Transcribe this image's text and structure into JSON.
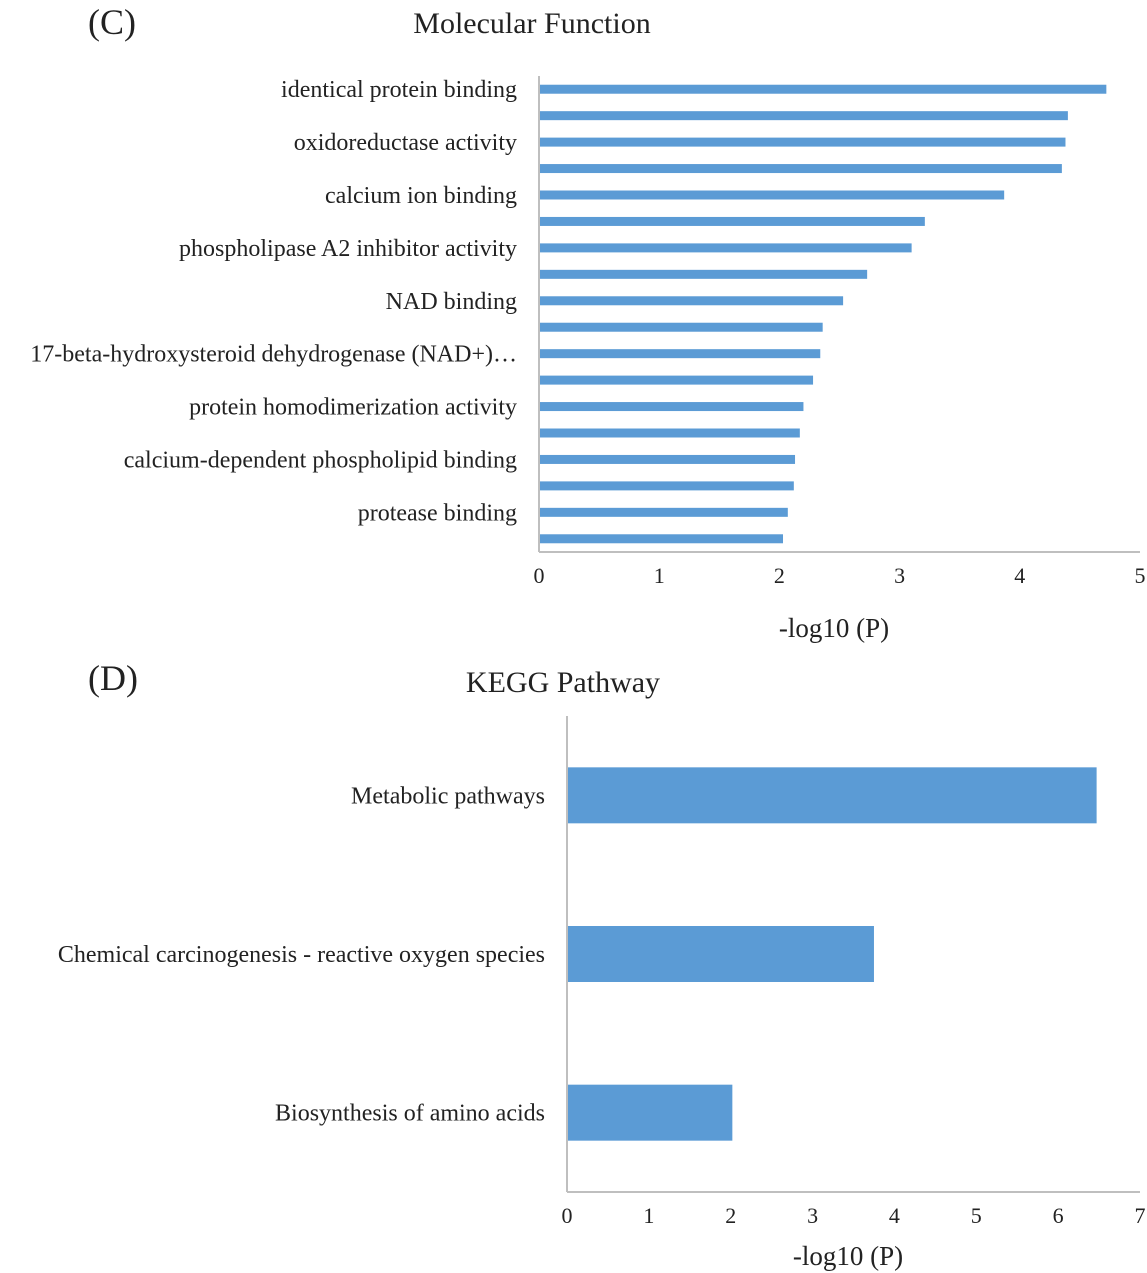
{
  "chart_data": [
    {
      "type": "bar",
      "orientation": "horizontal",
      "panel_label": "(C)",
      "title": "Molecular Function",
      "xlabel": "-log10 (P)",
      "ylabel": "",
      "xlim": [
        0,
        5
      ],
      "xticks": [
        "0",
        "1",
        "2",
        "3",
        "4",
        "5"
      ],
      "bar_color": "#5b9bd5",
      "categories": [
        "identical protein binding",
        "",
        "oxidoreductase activity",
        "",
        "calcium ion binding",
        "",
        "phospholipase A2 inhibitor activity",
        "",
        "NAD binding",
        "",
        "17-beta-hydroxysteroid dehydrogenase (NAD+)…",
        "",
        "protein homodimerization activity",
        "",
        "calcium-dependent phospholipid binding",
        "",
        "protease binding",
        ""
      ],
      "values": [
        4.72,
        4.4,
        4.38,
        4.35,
        3.87,
        3.21,
        3.1,
        2.73,
        2.53,
        2.36,
        2.34,
        2.28,
        2.2,
        2.17,
        2.13,
        2.12,
        2.07,
        2.03
      ]
    },
    {
      "type": "bar",
      "orientation": "horizontal",
      "panel_label": "(D)",
      "title": "KEGG Pathway",
      "xlabel": "-log10 (P)",
      "ylabel": "",
      "xlim": [
        0,
        7
      ],
      "xticks": [
        "0",
        "1",
        "2",
        "3",
        "4",
        "5",
        "6",
        "7"
      ],
      "bar_color": "#5b9bd5",
      "categories": [
        "Metabolic pathways",
        "Chemical carcinogenesis - reactive oxygen species",
        "Biosynthesis of amino acids"
      ],
      "values": [
        6.47,
        3.75,
        2.02
      ]
    }
  ]
}
